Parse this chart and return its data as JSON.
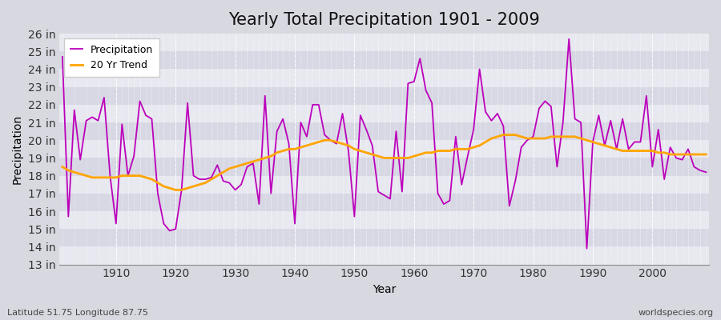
{
  "title": "Yearly Total Precipitation 1901 - 2009",
  "xlabel": "Year",
  "ylabel": "Precipitation",
  "subtitle_left": "Latitude 51.75 Longitude 87.75",
  "subtitle_right": "worldspecies.org",
  "years": [
    1901,
    1902,
    1903,
    1904,
    1905,
    1906,
    1907,
    1908,
    1909,
    1910,
    1911,
    1912,
    1913,
    1914,
    1915,
    1916,
    1917,
    1918,
    1919,
    1920,
    1921,
    1922,
    1923,
    1924,
    1925,
    1926,
    1927,
    1928,
    1929,
    1930,
    1931,
    1932,
    1933,
    1934,
    1935,
    1936,
    1937,
    1938,
    1939,
    1940,
    1941,
    1942,
    1943,
    1944,
    1945,
    1946,
    1947,
    1948,
    1949,
    1950,
    1951,
    1952,
    1953,
    1954,
    1955,
    1956,
    1957,
    1958,
    1959,
    1960,
    1961,
    1962,
    1963,
    1964,
    1965,
    1966,
    1967,
    1968,
    1969,
    1970,
    1971,
    1972,
    1973,
    1974,
    1975,
    1976,
    1977,
    1978,
    1979,
    1980,
    1981,
    1982,
    1983,
    1984,
    1985,
    1986,
    1987,
    1988,
    1989,
    1990,
    1991,
    1992,
    1993,
    1994,
    1995,
    1996,
    1997,
    1998,
    1999,
    2000,
    2001,
    2002,
    2003,
    2004,
    2005,
    2006,
    2007,
    2008,
    2009
  ],
  "precip": [
    24.7,
    15.7,
    21.7,
    18.9,
    21.1,
    21.3,
    21.1,
    22.4,
    18.0,
    15.3,
    20.9,
    18.0,
    19.1,
    22.2,
    21.4,
    21.2,
    17.0,
    15.3,
    14.9,
    15.0,
    17.2,
    22.1,
    18.0,
    17.8,
    17.8,
    17.9,
    18.6,
    17.7,
    17.6,
    17.2,
    17.5,
    18.5,
    18.7,
    16.4,
    22.5,
    17.0,
    20.5,
    21.2,
    19.8,
    15.3,
    21.0,
    20.2,
    22.0,
    22.0,
    20.3,
    20.0,
    19.8,
    21.5,
    19.4,
    15.7,
    21.4,
    20.6,
    19.7,
    17.1,
    16.9,
    16.7,
    20.5,
    17.1,
    23.2,
    23.3,
    24.6,
    22.8,
    22.1,
    17.0,
    16.4,
    16.6,
    20.2,
    17.5,
    19.1,
    20.6,
    24.0,
    21.6,
    21.1,
    21.5,
    20.8,
    16.3,
    17.7,
    19.6,
    20.0,
    20.2,
    21.8,
    22.2,
    21.9,
    18.5,
    21.0,
    25.7,
    21.2,
    21.0,
    13.9,
    19.9,
    21.4,
    19.7,
    21.1,
    19.5,
    21.2,
    19.5,
    19.9,
    19.9,
    22.5,
    18.5,
    20.6,
    17.8,
    19.6,
    19.0,
    18.9,
    19.5,
    18.5,
    18.3,
    18.2
  ],
  "trend": [
    18.5,
    18.3,
    18.2,
    18.1,
    18.0,
    17.9,
    17.9,
    17.9,
    17.9,
    17.9,
    18.0,
    18.0,
    18.0,
    18.0,
    17.9,
    17.8,
    17.6,
    17.4,
    17.3,
    17.2,
    17.2,
    17.3,
    17.4,
    17.5,
    17.6,
    17.8,
    18.0,
    18.2,
    18.4,
    18.5,
    18.6,
    18.7,
    18.8,
    18.9,
    19.0,
    19.1,
    19.3,
    19.4,
    19.5,
    19.5,
    19.6,
    19.7,
    19.8,
    19.9,
    20.0,
    20.0,
    19.9,
    19.8,
    19.7,
    19.5,
    19.4,
    19.3,
    19.2,
    19.1,
    19.0,
    19.0,
    19.0,
    19.0,
    19.0,
    19.1,
    19.2,
    19.3,
    19.3,
    19.4,
    19.4,
    19.4,
    19.5,
    19.5,
    19.5,
    19.6,
    19.7,
    19.9,
    20.1,
    20.2,
    20.3,
    20.3,
    20.3,
    20.2,
    20.1,
    20.1,
    20.1,
    20.1,
    20.2,
    20.2,
    20.2,
    20.2,
    20.2,
    20.1,
    20.0,
    19.9,
    19.8,
    19.7,
    19.6,
    19.5,
    19.4,
    19.4,
    19.4,
    19.4,
    19.4,
    19.4,
    19.3,
    19.3,
    19.2,
    19.2,
    19.2,
    19.2,
    19.2,
    19.2,
    19.2
  ],
  "precip_color": "#bb00bb",
  "trend_color": "#FFA500",
  "fig_bg_color": "#d8d8e0",
  "plot_bg_light": "#e8e8f0",
  "plot_bg_dark": "#d8d8e4",
  "ylim": [
    13,
    26
  ],
  "yticks": [
    13,
    14,
    15,
    16,
    17,
    18,
    19,
    20,
    21,
    22,
    23,
    24,
    25,
    26
  ],
  "ytick_labels": [
    "13 in",
    "14 in",
    "15 in",
    "16 in",
    "17 in",
    "18 in",
    "19 in",
    "20 in",
    "21 in",
    "22 in",
    "23 in",
    "24 in",
    "25 in",
    "26 in"
  ],
  "xticks": [
    1910,
    1920,
    1930,
    1940,
    1950,
    1960,
    1970,
    1980,
    1990,
    2000
  ],
  "title_fontsize": 15,
  "axis_fontsize": 10,
  "legend_fontsize": 9
}
